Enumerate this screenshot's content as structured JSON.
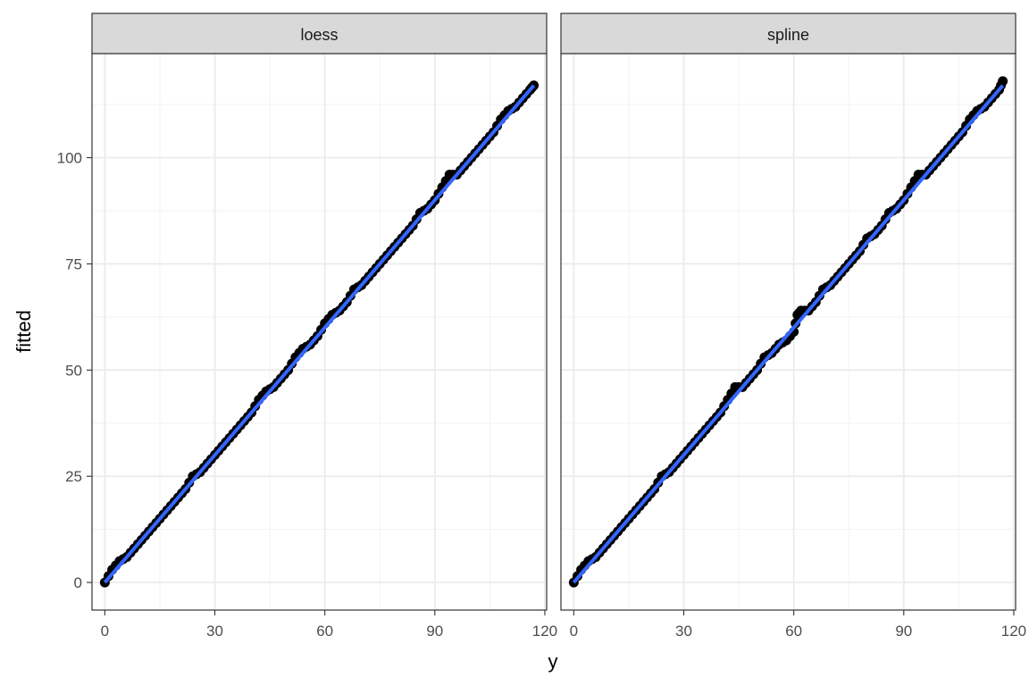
{
  "chart_data": {
    "type": "scatter",
    "xlabel": "y",
    "ylabel": "fitted",
    "xlim": [
      -3.5,
      120.5
    ],
    "ylim": [
      -6.5,
      124.5
    ],
    "x_ticks": [
      0,
      30,
      60,
      90,
      120
    ],
    "x_tick_labels": [
      "0",
      "30",
      "60",
      "90",
      "120"
    ],
    "y_ticks": [
      0,
      25,
      50,
      75,
      100
    ],
    "y_tick_labels": [
      "0",
      "25",
      "50",
      "75",
      "100"
    ],
    "grid": true,
    "point_color": "#000000",
    "smooth_color": "#3366FF",
    "panels": [
      {
        "strip": "loess",
        "points": [
          [
            0,
            0
          ],
          [
            2,
            3
          ],
          [
            4,
            5
          ],
          [
            6,
            6
          ],
          [
            8,
            8
          ],
          [
            10,
            10
          ],
          [
            12,
            12
          ],
          [
            14,
            14
          ],
          [
            16,
            16
          ],
          [
            18,
            18
          ],
          [
            20,
            20
          ],
          [
            22,
            22
          ],
          [
            24,
            25
          ],
          [
            26,
            26
          ],
          [
            28,
            28
          ],
          [
            30,
            30
          ],
          [
            32,
            32
          ],
          [
            34,
            34
          ],
          [
            36,
            36
          ],
          [
            38,
            38
          ],
          [
            40,
            40
          ],
          [
            42,
            43
          ],
          [
            44,
            45
          ],
          [
            46,
            46
          ],
          [
            48,
            48
          ],
          [
            50,
            50
          ],
          [
            52,
            53
          ],
          [
            54,
            55
          ],
          [
            56,
            56
          ],
          [
            58,
            58
          ],
          [
            60,
            61
          ],
          [
            62,
            63
          ],
          [
            64,
            64
          ],
          [
            66,
            66
          ],
          [
            68,
            69
          ],
          [
            70,
            70
          ],
          [
            72,
            72
          ],
          [
            74,
            74
          ],
          [
            76,
            76
          ],
          [
            78,
            78
          ],
          [
            80,
            80
          ],
          [
            82,
            82
          ],
          [
            84,
            84
          ],
          [
            86,
            87
          ],
          [
            88,
            88
          ],
          [
            90,
            90
          ],
          [
            92,
            93
          ],
          [
            94,
            96
          ],
          [
            96,
            96
          ],
          [
            98,
            98
          ],
          [
            100,
            100
          ],
          [
            102,
            102
          ],
          [
            104,
            104
          ],
          [
            106,
            106
          ],
          [
            108,
            109
          ],
          [
            110,
            111
          ],
          [
            112,
            112
          ],
          [
            114,
            114
          ],
          [
            116,
            116
          ],
          [
            117,
            117
          ]
        ],
        "smooth": [
          [
            0,
            0
          ],
          [
            117,
            117
          ]
        ]
      },
      {
        "strip": "spline",
        "points": [
          [
            0,
            0
          ],
          [
            2,
            3
          ],
          [
            4,
            5
          ],
          [
            6,
            6
          ],
          [
            8,
            8
          ],
          [
            10,
            10
          ],
          [
            12,
            12
          ],
          [
            14,
            14
          ],
          [
            16,
            16
          ],
          [
            18,
            18
          ],
          [
            20,
            20
          ],
          [
            22,
            22
          ],
          [
            24,
            25
          ],
          [
            26,
            26
          ],
          [
            28,
            28
          ],
          [
            30,
            30
          ],
          [
            32,
            32
          ],
          [
            34,
            34
          ],
          [
            36,
            36
          ],
          [
            38,
            38
          ],
          [
            40,
            40
          ],
          [
            42,
            43
          ],
          [
            44,
            46
          ],
          [
            46,
            46
          ],
          [
            48,
            48
          ],
          [
            50,
            50
          ],
          [
            52,
            53
          ],
          [
            54,
            54
          ],
          [
            56,
            56
          ],
          [
            58,
            57
          ],
          [
            60,
            59
          ],
          [
            61,
            63
          ],
          [
            62,
            64
          ],
          [
            64,
            64
          ],
          [
            66,
            66
          ],
          [
            68,
            69
          ],
          [
            70,
            70
          ],
          [
            72,
            72
          ],
          [
            74,
            74
          ],
          [
            76,
            76
          ],
          [
            78,
            78
          ],
          [
            80,
            81
          ],
          [
            82,
            82
          ],
          [
            84,
            84
          ],
          [
            86,
            87
          ],
          [
            88,
            88
          ],
          [
            90,
            90
          ],
          [
            92,
            93
          ],
          [
            94,
            96
          ],
          [
            96,
            96
          ],
          [
            98,
            98
          ],
          [
            100,
            100
          ],
          [
            102,
            102
          ],
          [
            104,
            104
          ],
          [
            106,
            106
          ],
          [
            108,
            109
          ],
          [
            110,
            111
          ],
          [
            112,
            112
          ],
          [
            114,
            114
          ],
          [
            116,
            116
          ],
          [
            117,
            118
          ]
        ],
        "smooth": [
          [
            0,
            0
          ],
          [
            117,
            117
          ]
        ]
      }
    ]
  }
}
